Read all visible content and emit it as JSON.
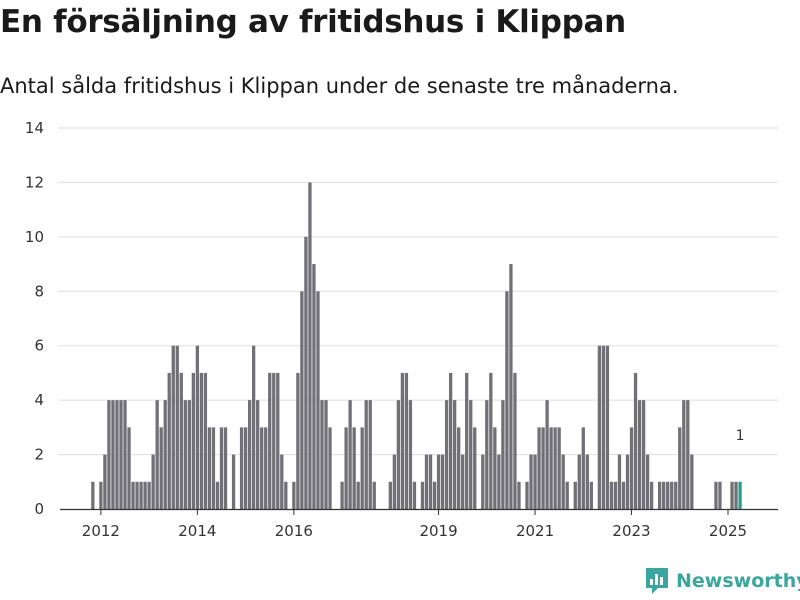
{
  "chart_data": {
    "type": "bar",
    "title": "En försäljning av fritidshus i Klippan",
    "subtitle": "Antal sålda fritidshus i Klippan under de senaste tre månaderna.",
    "xlabel": "",
    "ylabel": "",
    "ylim": [
      0,
      14
    ],
    "yticks": [
      "0",
      "2",
      "4",
      "6",
      "8",
      "10",
      "12",
      "14"
    ],
    "xticks": [
      {
        "label": "2012",
        "year": 2012
      },
      {
        "label": "2014",
        "year": 2014
      },
      {
        "label": "2016",
        "year": 2016
      },
      {
        "label": "2019",
        "year": 2019
      },
      {
        "label": "2021",
        "year": 2021
      },
      {
        "label": "2023",
        "year": 2023
      },
      {
        "label": "2025",
        "year": 2025
      }
    ],
    "start": {
      "year": 2011,
      "month": 11
    },
    "series": [
      {
        "name": "Antal sålda fritidshus",
        "values": [
          1,
          0,
          1,
          2,
          4,
          4,
          4,
          4,
          4,
          3,
          1,
          1,
          1,
          1,
          1,
          2,
          4,
          3,
          4,
          5,
          6,
          6,
          5,
          4,
          4,
          5,
          6,
          5,
          5,
          3,
          3,
          1,
          3,
          3,
          0,
          2,
          0,
          3,
          3,
          4,
          6,
          4,
          3,
          3,
          5,
          5,
          5,
          2,
          1,
          0,
          1,
          5,
          8,
          10,
          12,
          9,
          8,
          4,
          4,
          3,
          0,
          0,
          1,
          3,
          4,
          3,
          1,
          3,
          4,
          4,
          1,
          0,
          0,
          0,
          1,
          2,
          4,
          5,
          5,
          4,
          1,
          0,
          1,
          2,
          2,
          1,
          2,
          2,
          4,
          5,
          4,
          3,
          2,
          5,
          4,
          3,
          0,
          2,
          4,
          5,
          3,
          2,
          4,
          8,
          9,
          5,
          1,
          0,
          1,
          2,
          2,
          3,
          3,
          4,
          3,
          3,
          3,
          2,
          1,
          0,
          1,
          2,
          3,
          2,
          1,
          0,
          6,
          6,
          6,
          1,
          1,
          2,
          1,
          2,
          3,
          5,
          4,
          4,
          2,
          1,
          0,
          1,
          1,
          1,
          1,
          1,
          3,
          4,
          4,
          2,
          0,
          0,
          0,
          0,
          0,
          1,
          1,
          0,
          0,
          1,
          1,
          1
        ]
      }
    ],
    "highlight_label": "1",
    "colors": {
      "bar": "#727077",
      "highlight": "#2a9d8f",
      "grid": "#dddddd",
      "axis": "#333333"
    }
  },
  "brand": {
    "name": "Newsworthy",
    "color": "#3aa69d",
    "icon": "bar-chart-logo-icon"
  }
}
